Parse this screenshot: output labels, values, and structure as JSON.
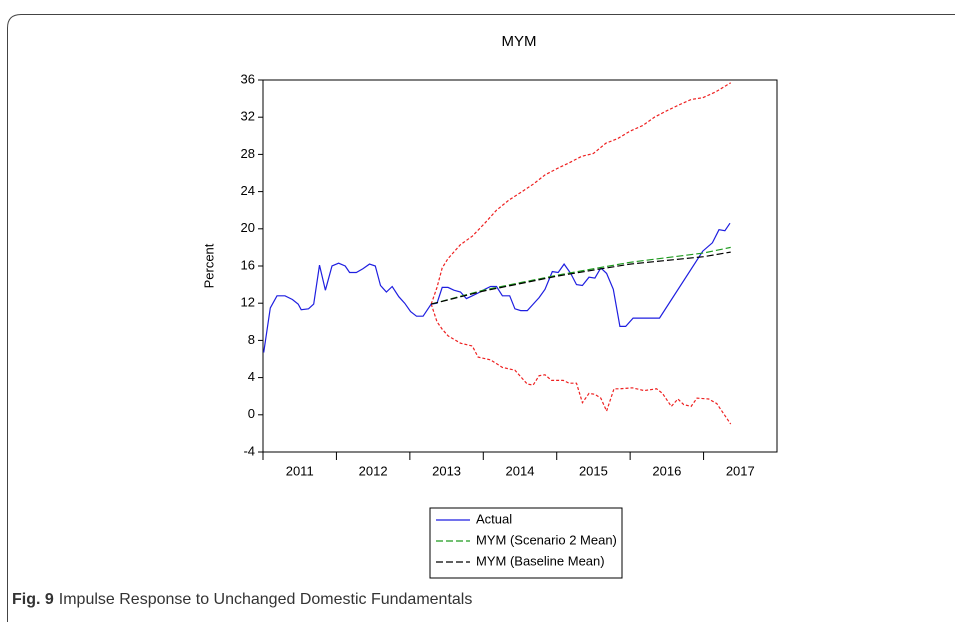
{
  "chart_data": {
    "type": "line",
    "title": "MYM",
    "y_label": "Percent",
    "xlim": [
      2011,
      2018
    ],
    "xticks": [
      2011,
      2012,
      2013,
      2014,
      2015,
      2016,
      2017
    ],
    "ylim": [
      -4,
      36
    ],
    "yticks": [
      -4,
      0,
      4,
      8,
      12,
      16,
      20,
      24,
      28,
      32,
      36
    ],
    "legend": "below",
    "series": [
      {
        "name": "Actual",
        "color": "#1f1fe0",
        "line_style": "solid",
        "x": [
          2011.01,
          2011.1,
          2011.19,
          2011.3,
          2011.4,
          2011.48,
          2011.52,
          2011.62,
          2011.69,
          2011.77,
          2011.85,
          2011.94,
          2012.03,
          2012.12,
          2012.18,
          2012.27,
          2012.36,
          2012.45,
          2012.53,
          2012.6,
          2012.68,
          2012.76,
          2012.85,
          2012.93,
          2013.01,
          2013.09,
          2013.18,
          2013.29,
          2013.37,
          2013.44,
          2013.52,
          2013.6,
          2013.69,
          2013.77,
          2013.85,
          2013.93,
          2014.02,
          2014.1,
          2014.18,
          2014.26,
          2014.36,
          2014.43,
          2014.51,
          2014.6,
          2014.68,
          2014.76,
          2014.84,
          2014.94,
          2015.02,
          2015.1,
          2015.19,
          2015.27,
          2015.35,
          2015.44,
          2015.52,
          2015.6,
          2015.68,
          2015.77,
          2015.86,
          2015.94,
          2016.04,
          2016.12,
          2016.28,
          2016.4,
          2016.99,
          2017.12,
          2017.21,
          2017.29,
          2017.36
        ],
        "values": [
          6.7,
          11.5,
          12.8,
          12.8,
          12.4,
          11.9,
          11.3,
          11.4,
          11.9,
          16.1,
          13.4,
          16.0,
          16.3,
          16.0,
          15.3,
          15.3,
          15.7,
          16.2,
          16.0,
          13.9,
          13.2,
          13.8,
          12.7,
          12.0,
          11.1,
          10.6,
          10.6,
          11.9,
          12.0,
          13.7,
          13.7,
          13.4,
          13.2,
          12.5,
          12.8,
          13.1,
          13.5,
          13.8,
          13.8,
          12.8,
          12.8,
          11.4,
          11.2,
          11.2,
          11.9,
          12.6,
          13.5,
          15.4,
          15.3,
          16.2,
          15.2,
          14.0,
          13.9,
          14.8,
          14.7,
          15.8,
          15.2,
          13.5,
          9.5,
          9.5,
          10.4,
          10.4,
          10.4,
          10.4,
          17.6,
          18.5,
          19.9,
          19.8,
          20.6
        ]
      },
      {
        "name": "MYM (Scenario 2 Mean)",
        "color": "#1e9a1e",
        "line_style": "dashed",
        "x": [
          2013.29,
          2014.0,
          2015.0,
          2016.0,
          2017.0,
          2017.37
        ],
        "values": [
          11.9,
          13.4,
          15.0,
          16.4,
          17.4,
          18.0
        ]
      },
      {
        "name": "MYM (Baseline Mean)",
        "color": "#000000",
        "line_style": "dashed",
        "x": [
          2013.29,
          2014.0,
          2015.0,
          2016.0,
          2017.0,
          2017.37
        ],
        "values": [
          11.9,
          13.3,
          14.9,
          16.2,
          17.0,
          17.5
        ]
      }
    ],
    "bands": [
      {
        "color": "#ee2020",
        "line_style": "dotted",
        "x": [
          2013.29,
          2013.37,
          2013.44,
          2013.52,
          2013.69,
          2013.85,
          2014.02,
          2014.18,
          2014.35,
          2014.51,
          2014.68,
          2014.84,
          2015.01,
          2015.17,
          2015.34,
          2015.5,
          2015.67,
          2015.83,
          2016.0,
          2016.17,
          2016.33,
          2016.5,
          2016.66,
          2016.83,
          2016.99,
          2017.16,
          2017.37
        ],
        "values": [
          11.9,
          13.7,
          15.8,
          16.8,
          18.3,
          19.2,
          20.6,
          22.0,
          23.1,
          23.9,
          24.8,
          25.8,
          26.5,
          27.1,
          27.8,
          28.1,
          29.2,
          29.7,
          30.5,
          31.1,
          32.0,
          32.7,
          33.3,
          33.9,
          34.1,
          34.7,
          35.7
        ]
      },
      {
        "color": "#ee2020",
        "line_style": "dotted",
        "x": [
          2013.29,
          2013.37,
          2013.44,
          2013.52,
          2013.69,
          2013.85,
          2013.93,
          2014.1,
          2014.26,
          2014.43,
          2014.6,
          2014.68,
          2014.76,
          2014.84,
          2014.93,
          2015.09,
          2015.17,
          2015.27,
          2015.35,
          2015.44,
          2015.52,
          2015.6,
          2015.68,
          2015.78,
          2015.86,
          2016.03,
          2016.19,
          2016.36,
          2016.44,
          2016.56,
          2016.65,
          2016.73,
          2016.83,
          2016.91,
          2017.07,
          2017.18,
          2017.37
        ],
        "values": [
          11.9,
          10.0,
          9.2,
          8.5,
          7.7,
          7.4,
          6.2,
          5.9,
          5.1,
          4.8,
          3.3,
          3.2,
          4.2,
          4.3,
          3.7,
          3.7,
          3.4,
          3.4,
          1.3,
          2.3,
          2.2,
          1.8,
          0.4,
          2.8,
          2.8,
          2.9,
          2.6,
          2.8,
          2.3,
          0.9,
          1.7,
          1.1,
          0.9,
          1.8,
          1.7,
          1.2,
          -1.0
        ]
      }
    ]
  },
  "caption": {
    "label": "Fig. 9",
    "text": "Impulse Response to Unchanged Domestic Fundamentals"
  }
}
